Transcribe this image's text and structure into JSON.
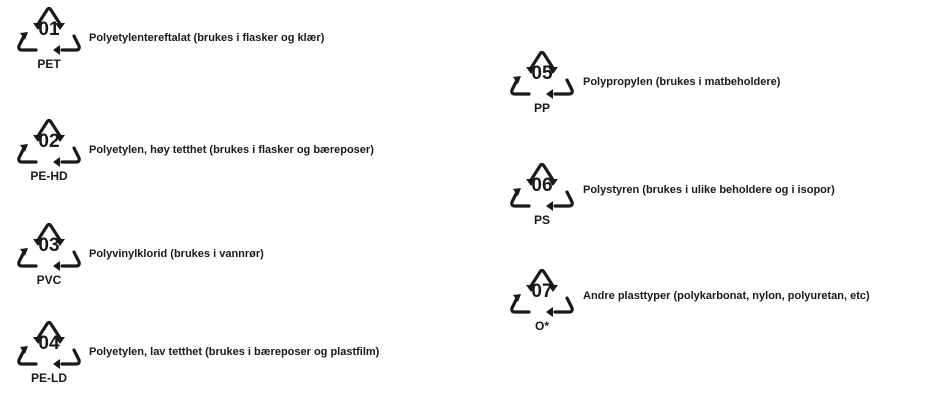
{
  "symbols": [
    {
      "code": "01",
      "abbr": "PET",
      "description": "Polyetylentereftalat (brukes i flasker og klær)"
    },
    {
      "code": "02",
      "abbr": "PE-HD",
      "description": "Polyetylen, høy tetthet (brukes i flasker og bæreposer)"
    },
    {
      "code": "03",
      "abbr": "PVC",
      "description": "Polyvinylklorid (brukes i vannrør)"
    },
    {
      "code": "04",
      "abbr": "PE-LD",
      "description": "Polyetylen, lav tetthet (brukes i bæreposer og plastfilm)"
    },
    {
      "code": "05",
      "abbr": "PP",
      "description": "Polypropylen (brukes i matbeholdere)"
    },
    {
      "code": "06",
      "abbr": "PS",
      "description": "Polystyren (brukes i ulike beholdere og i isopor)"
    },
    {
      "code": "07",
      "abbr": "O*",
      "description": "Andre plasttyper (polykarbonat, nylon, polyuretan, etc)"
    }
  ]
}
